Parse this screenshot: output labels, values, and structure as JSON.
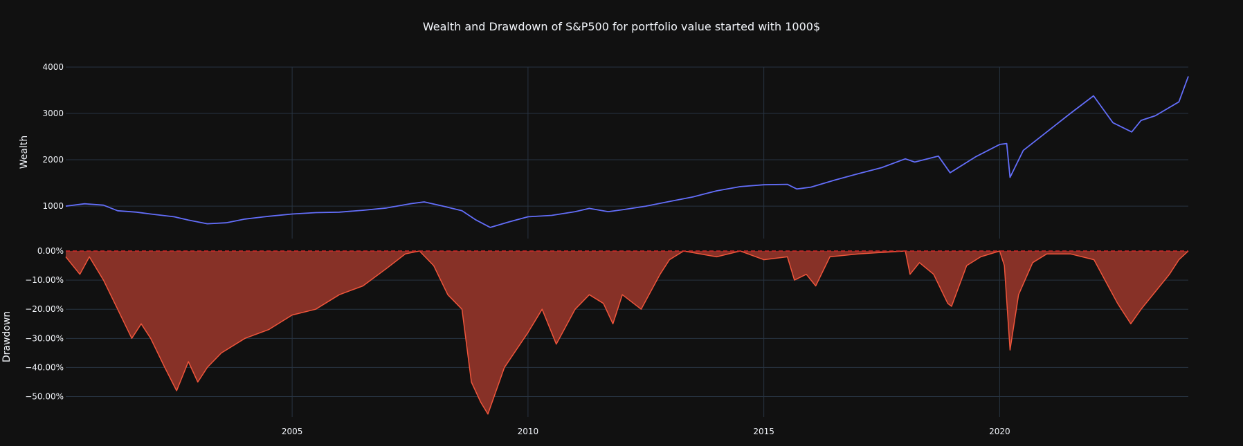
{
  "chart_data": {
    "title": "Wealth and Drawdown of S&P500 for portfolio value started with 1000$",
    "colors": {
      "background": "#111111",
      "grid": "#283442",
      "text": "#f2f5fa",
      "wealth_line": "#636efa",
      "drawdown_line": "#ef553b",
      "drawdown_fill": "#873127",
      "zero_line": "#d62728"
    },
    "x_range": [
      2000.2,
      2024.0
    ],
    "x_ticks": [
      {
        "label": "2005",
        "value": 2005
      },
      {
        "label": "2010",
        "value": 2010
      },
      {
        "label": "2015",
        "value": 2015
      },
      {
        "label": "2020",
        "value": 2020
      }
    ],
    "grid": true,
    "charts": [
      {
        "type": "line",
        "ylabel": "Wealth",
        "ylim": [
          300,
          4000
        ],
        "y_ticks": [
          {
            "label": "1000",
            "value": 1000
          },
          {
            "label": "2000",
            "value": 2000
          },
          {
            "label": "3000",
            "value": 3000
          },
          {
            "label": "4000",
            "value": 4000
          }
        ],
        "series": [
          {
            "x": [
              2000.2,
              2000.6,
              2001.0,
              2001.3,
              2001.7,
              2002.0,
              2002.5,
              2002.8,
              2003.2,
              2003.6,
              2004.0,
              2004.5,
              2005.0,
              2005.5,
              2006.0,
              2006.5,
              2007.0,
              2007.5,
              2007.8,
              2008.2,
              2008.6,
              2008.9,
              2009.2,
              2009.6,
              2010.0,
              2010.5,
              2011.0,
              2011.3,
              2011.7,
              2012.0,
              2012.5,
              2013.0,
              2013.5,
              2014.0,
              2014.5,
              2015.0,
              2015.5,
              2015.7,
              2016.0,
              2016.5,
              2017.0,
              2017.5,
              2018.0,
              2018.2,
              2018.7,
              2018.95,
              2019.5,
              2020.0,
              2020.15,
              2020.22,
              2020.5,
              2021.0,
              2021.5,
              2021.99,
              2022.4,
              2022.8,
              2023.0,
              2023.3,
              2023.8,
              2024.0
            ],
            "y": [
              1000,
              1050,
              1020,
              900,
              870,
              830,
              770,
              700,
              620,
              640,
              720,
              780,
              830,
              860,
              870,
              910,
              960,
              1050,
              1090,
              1000,
              900,
              700,
              540,
              660,
              770,
              800,
              880,
              950,
              880,
              920,
              1000,
              1100,
              1200,
              1330,
              1420,
              1460,
              1470,
              1370,
              1410,
              1560,
              1700,
              1830,
              2020,
              1950,
              2080,
              1720,
              2070,
              2330,
              2350,
              1620,
              2200,
              2600,
              3000,
              3380,
              2800,
              2600,
              2850,
              2950,
              3250,
              3800
            ]
          }
        ]
      },
      {
        "type": "area",
        "ylabel": "Drawdown",
        "ylim": [
          -57,
          0
        ],
        "y_ticks": [
          {
            "label": "0.00%",
            "value": 0
          },
          {
            "label": "−10.00%",
            "value": -10
          },
          {
            "label": "−20.00%",
            "value": -20
          },
          {
            "label": "−30.00%",
            "value": -30
          },
          {
            "label": "−40.00%",
            "value": -40
          },
          {
            "label": "−50.00%",
            "value": -50
          }
        ],
        "series": [
          {
            "x": [
              2000.2,
              2000.5,
              2000.7,
              2001.0,
              2001.3,
              2001.6,
              2001.8,
              2002.0,
              2002.3,
              2002.55,
              2002.8,
              2003.0,
              2003.2,
              2003.5,
              2004.0,
              2004.5,
              2005.0,
              2005.5,
              2006.0,
              2006.5,
              2007.0,
              2007.4,
              2007.7,
              2008.0,
              2008.3,
              2008.6,
              2008.8,
              2009.0,
              2009.15,
              2009.5,
              2010.0,
              2010.3,
              2010.6,
              2011.0,
              2011.3,
              2011.6,
              2011.8,
              2012.0,
              2012.4,
              2012.8,
              2013.0,
              2013.3,
              2014.0,
              2014.5,
              2015.0,
              2015.5,
              2015.65,
              2015.9,
              2016.1,
              2016.4,
              2017.0,
              2018.0,
              2018.1,
              2018.3,
              2018.6,
              2018.9,
              2018.98,
              2019.3,
              2019.6,
              2020.0,
              2020.1,
              2020.22,
              2020.4,
              2020.7,
              2021.0,
              2021.5,
              2022.0,
              2022.3,
              2022.5,
              2022.78,
              2023.0,
              2023.3,
              2023.6,
              2023.8,
              2024.0
            ],
            "y": [
              -2,
              -8,
              -2,
              -10,
              -20,
              -30,
              -25,
              -30,
              -40,
              -48,
              -38,
              -45,
              -40,
              -35,
              -30,
              -27,
              -22,
              -20,
              -15,
              -12,
              -6,
              -1,
              0,
              -5,
              -15,
              -20,
              -45,
              -52,
              -56,
              -40,
              -28,
              -20,
              -32,
              -20,
              -15,
              -18,
              -25,
              -15,
              -20,
              -8,
              -3,
              0,
              -2,
              0,
              -3,
              -2,
              -10,
              -8,
              -12,
              -2,
              -1,
              0,
              -8,
              -4,
              -8,
              -18,
              -19,
              -5,
              -2,
              0,
              -5,
              -34,
              -15,
              -4,
              -1,
              -1,
              -3,
              -12,
              -18,
              -25,
              -20,
              -14,
              -8,
              -3,
              0
            ]
          }
        ]
      }
    ]
  }
}
